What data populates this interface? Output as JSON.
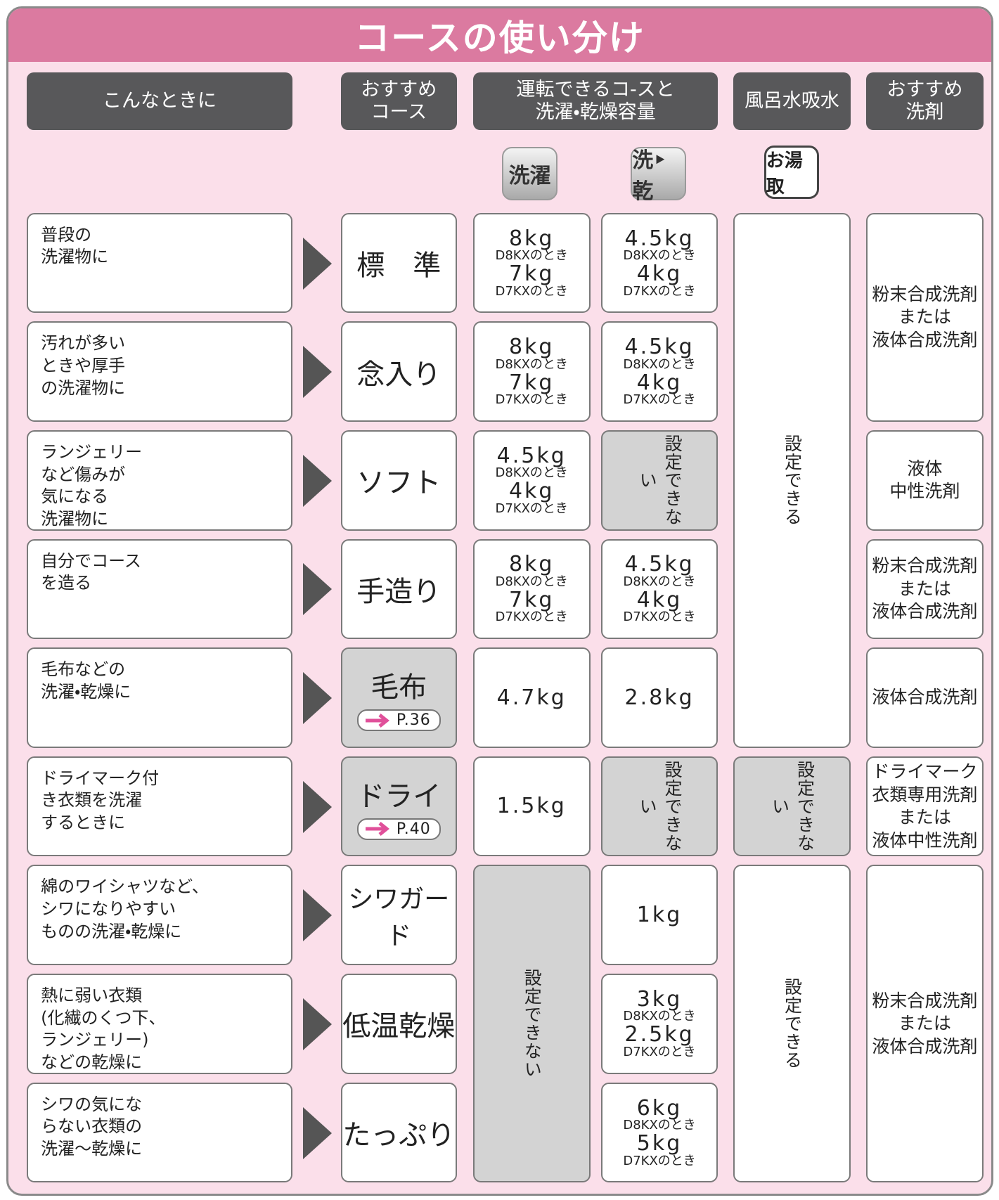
{
  "title": "コースの使い分け",
  "headers": [
    [
      "こんなときに"
    ],
    [
      "おすすめ",
      "コース"
    ],
    [
      "運転できるコ-スと",
      "洗濯・乾燥容量"
    ],
    [
      "風呂水吸水"
    ],
    [
      "おすすめ",
      "洗剤"
    ]
  ],
  "buttons": [
    "洗濯",
    "洗‣乾",
    "お湯取"
  ],
  "rows": [
    {
      "situation": [
        "普段の",
        "洗濯物に"
      ],
      "course": {
        "name": "標　準"
      },
      "wash": [
        "8kg",
        "D8KXのとき",
        "7kg",
        "D7KXのとき"
      ],
      "washdry": [
        "4.5kg",
        "D8KXのとき",
        "4kg",
        "D7KXのとき"
      ],
      "bath": {
        "text": "設定できる",
        "shaded": false
      },
      "detergent": [
        "粉末合成洗剤",
        "または",
        "液体合成洗剤"
      ]
    },
    {
      "situation": [
        "汚れが多い",
        "ときや厚手",
        "の洗濯物に"
      ],
      "course": {
        "name": "念入り"
      },
      "wash": [
        "8kg",
        "D8KXのとき",
        "7kg",
        "D7KXのとき"
      ],
      "washdry": [
        "4.5kg",
        "D8KXのとき",
        "4kg",
        "D7KXのとき"
      ],
      "bath": null,
      "detergent": null
    },
    {
      "situation": [
        "ランジェリー",
        "など傷みが",
        "気になる",
        "洗濯物に"
      ],
      "course": {
        "name": "ソフト"
      },
      "wash": [
        "4.5kg",
        "D8KXのとき",
        "4kg",
        "D7KXのとき"
      ],
      "washdry": {
        "text": "設定できない",
        "shaded": true
      },
      "bath": null,
      "detergent": [
        "液体",
        "中性洗剤"
      ]
    },
    {
      "situation": [
        "自分でコース",
        "を造る"
      ],
      "course": {
        "name": "手造り"
      },
      "wash": [
        "8kg",
        "D8KXのとき",
        "7kg",
        "D7KXのとき"
      ],
      "washdry": [
        "4.5kg",
        "D8KXのとき",
        "4kg",
        "D7KXのとき"
      ],
      "bath": null,
      "detergent": [
        "粉末合成洗剤",
        "または",
        "液体合成洗剤"
      ]
    },
    {
      "situation": [
        "毛布などの",
        "洗濯・乾燥に"
      ],
      "course": {
        "name": "毛布",
        "page": "P.36"
      },
      "wash": [
        "4.7kg"
      ],
      "washdry": [
        "2.8kg"
      ],
      "bath": null,
      "detergent": [
        "液体合成洗剤"
      ]
    },
    {
      "situation": [
        "ドライマーク付",
        "き衣類を洗濯",
        "するときに"
      ],
      "course": {
        "name": "ドライ",
        "page": "P.40"
      },
      "wash": [
        "1.5kg"
      ],
      "washdry": {
        "text": "設定できない",
        "shaded": true
      },
      "bath": {
        "text": "設定できない",
        "shaded": true
      },
      "detergent": [
        "ドライマーク",
        "衣類専用洗剤",
        "または",
        "液体中性洗剤"
      ]
    },
    {
      "situation": [
        "綿のワイシャツなど、",
        "シワになりやすい",
        "ものの洗濯・乾燥に"
      ],
      "course": {
        "name": "シワガード"
      },
      "wash": {
        "text": "設定できない",
        "shaded": true
      },
      "washdry": [
        "1kg"
      ],
      "bath": {
        "text": "設定できる",
        "shaded": false
      },
      "detergent": [
        "粉末合成洗剤",
        "または",
        "液体合成洗剤"
      ]
    },
    {
      "situation": [
        "熱に弱い衣類",
        "(化繊のくつ下、",
        "ランジェリー)",
        "などの乾燥に"
      ],
      "course": {
        "name": "低温乾燥"
      },
      "wash": null,
      "washdry": [
        "3kg",
        "D8KXのとき",
        "2.5kg",
        "D7KXのとき"
      ],
      "bath": null,
      "detergent": null
    },
    {
      "situation": [
        "シワの気にな",
        "らない衣類の",
        "洗濯～乾燥に"
      ],
      "course": {
        "name": "たっぷり"
      },
      "wash": null,
      "washdry": [
        "6kg",
        "D8KXのとき",
        "5kg",
        "D7KXのとき"
      ],
      "bath": null,
      "detergent": null
    }
  ]
}
